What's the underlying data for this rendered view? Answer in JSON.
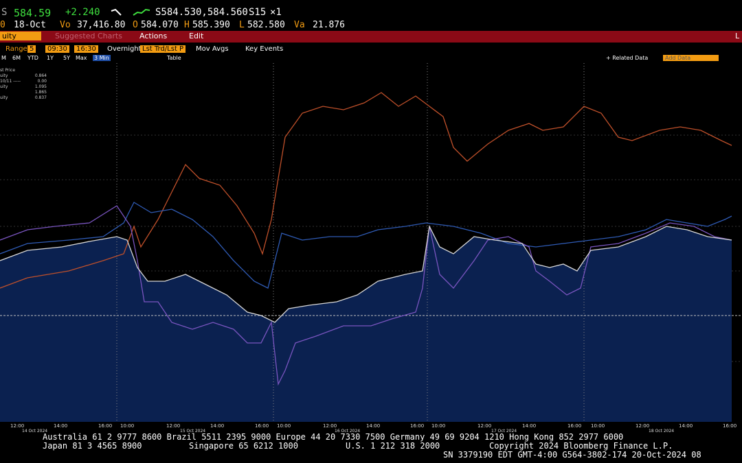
{
  "quote": {
    "ticker_stub": "S",
    "last": "584.59",
    "change": "+2.240",
    "bid_ask": "S584.530,584.560",
    "size": "S15",
    "multiplier": "×1"
  },
  "stats": {
    "stub": "0",
    "date": "18-Oct",
    "vo_label": "Vo",
    "vo": "37,416.80",
    "o_label": "O",
    "o": "584.070",
    "h_label": "H",
    "h": "585.390",
    "l_label": "L",
    "l": "582.580",
    "va_label": "Va",
    "va": "21.876"
  },
  "menu": {
    "security": "uity",
    "suggested": "Suggested Charts",
    "actions": "Actions",
    "edit": "Edit",
    "right": "L"
  },
  "toolbar": {
    "range": "Range",
    "range_value": "5",
    "start": "09:30",
    "end": "16:30",
    "overnight": "Overnight",
    "price": "Lst Trd/Lst P",
    "mov_avgs": "Mov Avgs",
    "key_events": "Key Events"
  },
  "periods": {
    "items": [
      "M",
      "6M",
      "YTD",
      "1Y",
      "5Y",
      "Max",
      "3 Min"
    ],
    "table": "Table",
    "related": "+ Related Data",
    "add_data": "Add Data"
  },
  "legend": {
    "title": "st Price",
    "rows": [
      {
        "name": "uity",
        "value": "0.864"
      },
      {
        "name": "10/11 -----",
        "value": "0.00"
      },
      {
        "name": "uity",
        "value": "1.095"
      },
      {
        "name": "",
        "value": "1.865"
      },
      {
        "name": "uity",
        "value": "0.837"
      }
    ]
  },
  "x_axis": {
    "times": [
      "12:00",
      "14:00",
      "16:00",
      "10:00",
      "12:00",
      "14:00",
      "16:00",
      "10:00",
      "12:00",
      "14:00",
      "16:00",
      "10:00",
      "12:00",
      "14:00",
      "16:00",
      "10:00",
      "12:00",
      "14:00",
      "16:00"
    ],
    "dates": [
      "14 Oct 2024",
      "15 Oct 2024",
      "16 Oct 2024",
      "17 Oct 2024",
      "18 Oct 2024"
    ]
  },
  "footer": {
    "line1": "Australia 61 2 9777 8600 Brazil 5511 2395 9000 Europe 44 20 7330 7500 Germany 49 69 9204 1210 Hong Kong 852 2977 6000",
    "line2a": "Japan 81 3 4565 8900",
    "line2b": "Singapore 65 6212 1000",
    "line2c": "U.S. 1 212 318 2000",
    "line2d": "Copyright 2024 Bloomberg Finance L.P.",
    "line3": "SN 3379190 EDT  GMT-4:00 G564-3802-174 20-Oct-2024 08"
  }
}
